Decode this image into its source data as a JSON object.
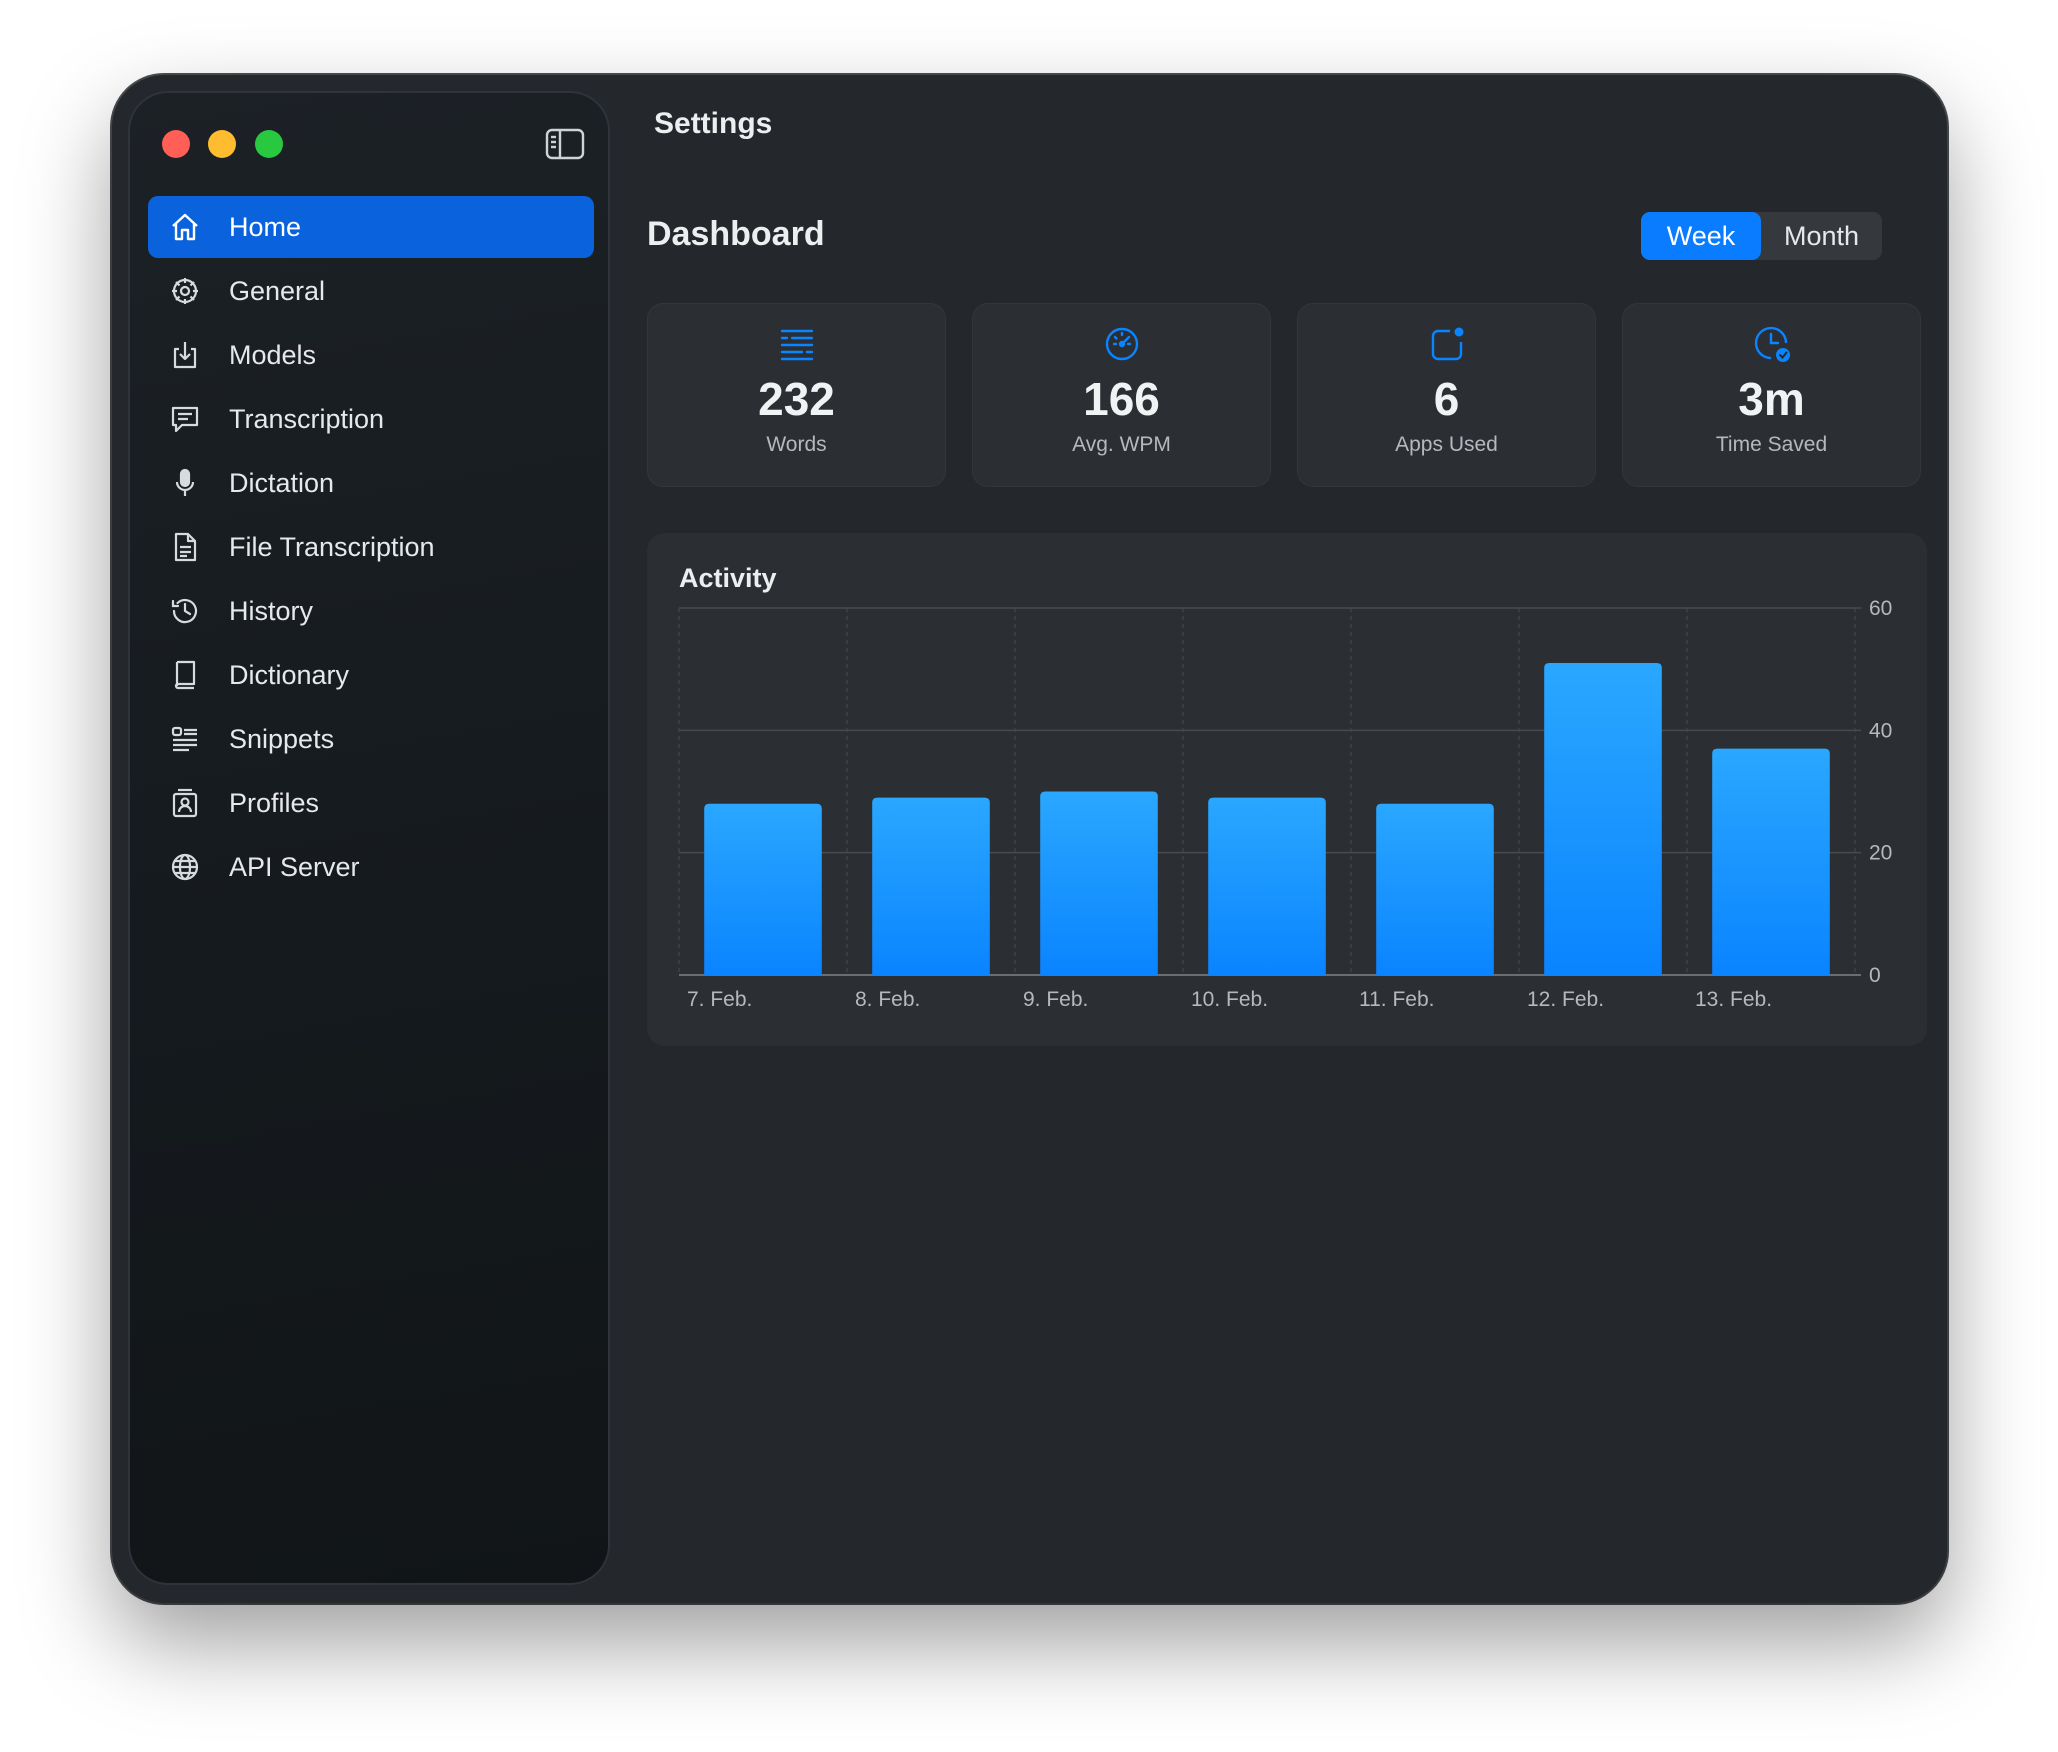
{
  "window": {
    "title": "Settings"
  },
  "sidebar": {
    "items": [
      {
        "label": "Home",
        "icon": "home-icon",
        "active": true
      },
      {
        "label": "General",
        "icon": "gear-icon"
      },
      {
        "label": "Models",
        "icon": "download-icon"
      },
      {
        "label": "Transcription",
        "icon": "speech-bubble-icon"
      },
      {
        "label": "Dictation",
        "icon": "microphone-icon"
      },
      {
        "label": "File Transcription",
        "icon": "document-icon"
      },
      {
        "label": "History",
        "icon": "history-clock-icon"
      },
      {
        "label": "Dictionary",
        "icon": "book-icon"
      },
      {
        "label": "Snippets",
        "icon": "snippets-list-icon"
      },
      {
        "label": "Profiles",
        "icon": "profile-badge-icon"
      },
      {
        "label": "API Server",
        "icon": "globe-icon"
      }
    ]
  },
  "dashboard": {
    "title": "Dashboard",
    "range": {
      "options": [
        "Week",
        "Month"
      ],
      "selected": "Week"
    },
    "stats": [
      {
        "value": "232",
        "label": "Words",
        "icon": "text-lines-icon"
      },
      {
        "value": "166",
        "label": "Avg. WPM",
        "icon": "speedometer-icon"
      },
      {
        "value": "6",
        "label": "Apps Used",
        "icon": "app-badge-icon"
      },
      {
        "value": "3m",
        "label": "Time Saved",
        "icon": "clock-check-icon"
      }
    ]
  },
  "colors": {
    "accent": "#0a7cff",
    "bar_top": "#2aa7ff",
    "bar_bottom": "#0a84ff"
  },
  "chart_data": {
    "type": "bar",
    "title": "Activity",
    "categories": [
      "7. Feb.",
      "8. Feb.",
      "9. Feb.",
      "10. Feb.",
      "11. Feb.",
      "12. Feb.",
      "13. Feb."
    ],
    "values": [
      28,
      29,
      30,
      29,
      28,
      51,
      37
    ],
    "ylim": [
      0,
      60
    ],
    "yticks": [
      "0",
      "20",
      "40",
      "60"
    ],
    "grid": true,
    "y_axis_position": "right"
  }
}
